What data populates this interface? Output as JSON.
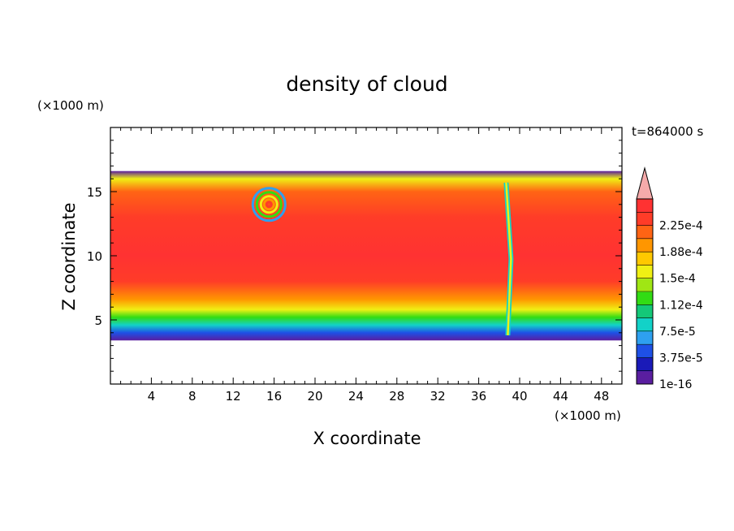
{
  "chart_data": {
    "type": "heatmap",
    "title": "density of cloud",
    "xlabel": "X coordinate",
    "ylabel": "Z coordinate",
    "x_unit": "(×1000 m)",
    "y_unit": "(×1000 m)",
    "time_label": "t=864000 s",
    "xlim": [
      0,
      50
    ],
    "ylim": [
      0,
      20
    ],
    "x_ticks": [
      4,
      8,
      12,
      16,
      20,
      24,
      28,
      32,
      36,
      40,
      44,
      48
    ],
    "y_ticks": [
      5,
      10,
      15
    ],
    "colorbar": {
      "labels": [
        "1e-16",
        "3.75e-5",
        "7.5e-5",
        "1.12e-4",
        "1.5e-4",
        "1.88e-4",
        "2.25e-4"
      ],
      "colors": [
        "#5a1ea0",
        "#1a1ab8",
        "#1e50e6",
        "#2ea0f0",
        "#12d2c8",
        "#14c878",
        "#32dc14",
        "#a0e614",
        "#f0f014",
        "#ffc800",
        "#ff9600",
        "#ff6414",
        "#ff3c28",
        "#ff3232"
      ],
      "extend_color": "#f5aaaa"
    },
    "cloud_extent": {
      "z_bottom": 3.4,
      "z_top": 16.6
    },
    "vertical_profile": [
      {
        "z": 3.4,
        "density": 0.0
      },
      {
        "z": 4.0,
        "density": 3.75e-05
      },
      {
        "z": 4.6,
        "density": 7.5e-05
      },
      {
        "z": 5.2,
        "density": 0.000112
      },
      {
        "z": 5.8,
        "density": 0.00015
      },
      {
        "z": 6.6,
        "density": 0.000188
      },
      {
        "z": 8.0,
        "density": 0.000225
      },
      {
        "z": 10.0,
        "density": 0.00024
      },
      {
        "z": 13.0,
        "density": 0.00023
      },
      {
        "z": 15.0,
        "density": 0.0002
      },
      {
        "z": 16.0,
        "density": 0.00015
      },
      {
        "z": 16.6,
        "density": 0.0
      }
    ],
    "features": [
      {
        "x": 15.5,
        "z": 14.0,
        "note": "vortex"
      },
      {
        "x": 39.0,
        "z": 10.0,
        "note": "front"
      }
    ]
  }
}
